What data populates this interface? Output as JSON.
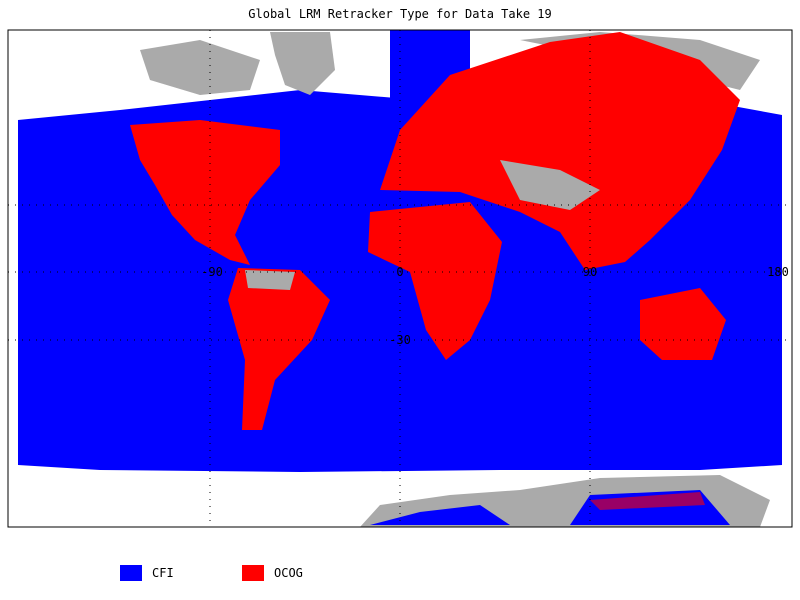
{
  "title": "Global LRM Retracker Type for Data Take 19",
  "graticule_labels": [
    "-90",
    "0",
    "90",
    "180",
    "-30"
  ],
  "legend": [
    {
      "label": "CFI",
      "color": "#0000ff"
    },
    {
      "label": "OCOG",
      "color": "#ff0000"
    }
  ]
}
